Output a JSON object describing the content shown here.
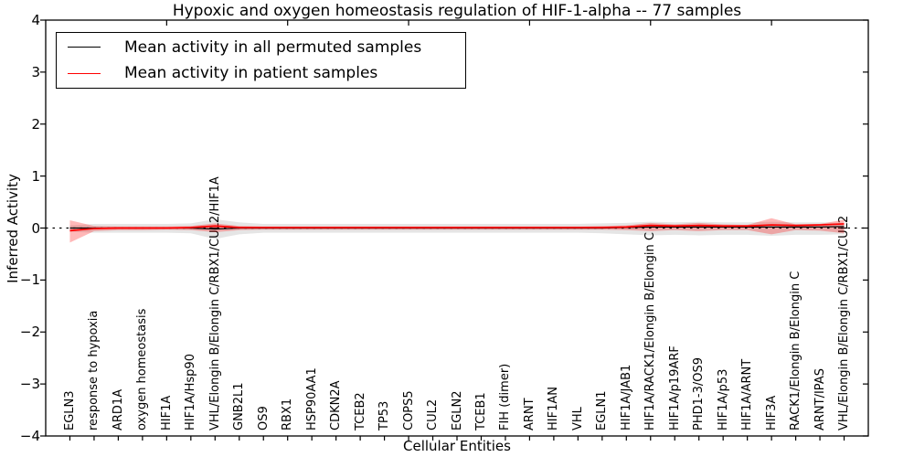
{
  "chart_data": {
    "type": "line",
    "title": "Hypoxic and oxygen homeostasis regulation of HIF-1-alpha -- 77 samples",
    "xlabel": "Cellular Entities",
    "ylabel": "Inferred Activity",
    "ylim": [
      -4,
      4
    ],
    "ytick_labels": [
      "4",
      "3",
      "2",
      "1",
      "0",
      "−1",
      "−2",
      "−3",
      "−4"
    ],
    "ytick_values": [
      4,
      3,
      2,
      1,
      0,
      -1,
      -2,
      -3,
      -4
    ],
    "grid": false,
    "zero_line": {
      "y": 0,
      "style": "dashed",
      "color": "#000000"
    },
    "legend": {
      "position": "upper-left",
      "entries": [
        {
          "label": "Mean activity in all permuted samples",
          "color": "#000000"
        },
        {
          "label": "Mean activity in patient samples",
          "color": "#ff0000"
        }
      ]
    },
    "categories": [
      "EGLN3",
      "response to hypoxia",
      "ARD1A",
      "oxygen homeostasis",
      "HIF1A",
      "HIF1A/Hsp90",
      "VHL/Elongin B/Elongin C/RBX1/CUL2/HIF1A",
      "GNB2L1",
      "OS9",
      "RBX1",
      "HSP90AA1",
      "CDKN2A",
      "TCEB2",
      "TP53",
      "COPS5",
      "CUL2",
      "EGLN2",
      "TCEB1",
      "FIH (dimer)",
      "ARNT",
      "HIF1AN",
      "VHL",
      "EGLN1",
      "HIF1A/JAB1",
      "HIF1A/RACK1/Elongin B/Elongin C",
      "HIF1A/p19ARF",
      "PHD1-3/OS9",
      "HIF1A/p53",
      "HIF1A/ARNT",
      "HIF3A",
      "RACK1/Elongin B/Elongin C",
      "ARNT/IPAS",
      "VHL/Elongin B/Elongin C/RBX1/CUL2"
    ],
    "series": [
      {
        "name": "Mean activity in all permuted samples",
        "color": "#000000",
        "values": [
          0,
          0,
          0,
          0,
          0,
          0,
          -0.02,
          0,
          0,
          0,
          0,
          0,
          0,
          0,
          0,
          0,
          0,
          0,
          0,
          0,
          0,
          0,
          0,
          0.01,
          0.02,
          0.02,
          0.02,
          0.02,
          0.02,
          0.02,
          0.02,
          0.02,
          0.03
        ]
      },
      {
        "name": "Mean activity in patient samples",
        "color": "#ff0000",
        "values": [
          -0.05,
          -0.01,
          0,
          0,
          0,
          0.01,
          0.04,
          0.01,
          0.01,
          0.01,
          0.01,
          0.01,
          0.01,
          0.01,
          0.01,
          0.01,
          0.01,
          0.01,
          0.01,
          0.01,
          0.01,
          0.01,
          0.01,
          0.02,
          0.05,
          0.04,
          0.05,
          0.04,
          0.04,
          0.06,
          0.05,
          0.06,
          0.08
        ]
      }
    ],
    "bands": [
      {
        "name": "permuted-samples-range",
        "color": "#000000",
        "alpha": 0.1,
        "upper": [
          0.05,
          0.08,
          0.08,
          0.08,
          0.08,
          0.09,
          0.17,
          0.11,
          0.08,
          0.08,
          0.08,
          0.08,
          0.08,
          0.08,
          0.08,
          0.08,
          0.08,
          0.08,
          0.08,
          0.08,
          0.08,
          0.08,
          0.09,
          0.1,
          0.12,
          0.11,
          0.12,
          0.11,
          0.11,
          0.12,
          0.11,
          0.11,
          0.1
        ],
        "lower": [
          -0.07,
          -0.09,
          -0.09,
          -0.09,
          -0.09,
          -0.1,
          -0.21,
          -0.12,
          -0.09,
          -0.09,
          -0.09,
          -0.09,
          -0.09,
          -0.09,
          -0.09,
          -0.09,
          -0.09,
          -0.09,
          -0.09,
          -0.09,
          -0.09,
          -0.09,
          -0.1,
          -0.12,
          -0.14,
          -0.13,
          -0.14,
          -0.13,
          -0.13,
          -0.15,
          -0.13,
          -0.13,
          -0.12
        ]
      },
      {
        "name": "patient-samples-range",
        "color": "#ff0000",
        "alpha": 0.28,
        "upper": [
          0.15,
          0.04,
          0.03,
          0.03,
          0.03,
          0.04,
          0.09,
          0.04,
          0.03,
          0.03,
          0.03,
          0.03,
          0.03,
          0.03,
          0.03,
          0.03,
          0.03,
          0.03,
          0.03,
          0.03,
          0.03,
          0.03,
          0.04,
          0.05,
          0.1,
          0.07,
          0.1,
          0.07,
          0.06,
          0.19,
          0.07,
          0.08,
          0.16
        ],
        "lower": [
          -0.28,
          -0.06,
          -0.04,
          -0.04,
          -0.03,
          -0.04,
          -0.08,
          -0.04,
          -0.03,
          -0.03,
          -0.03,
          -0.03,
          -0.03,
          -0.03,
          -0.03,
          -0.03,
          -0.03,
          -0.03,
          -0.03,
          -0.03,
          -0.03,
          -0.03,
          -0.03,
          -0.04,
          -0.06,
          -0.04,
          -0.06,
          -0.04,
          -0.04,
          -0.12,
          -0.04,
          -0.05,
          -0.1
        ]
      }
    ]
  }
}
